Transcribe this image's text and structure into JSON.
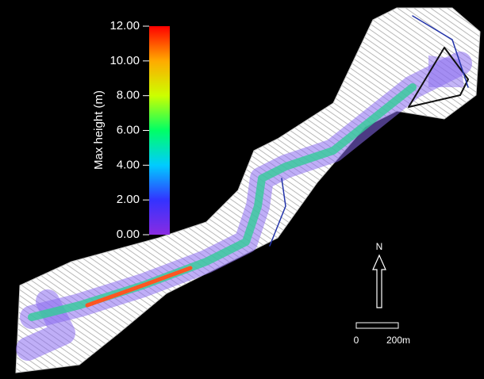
{
  "colorbar": {
    "label": "Max height (m)",
    "range": [
      0,
      12
    ],
    "ticks": [
      {
        "value": 0,
        "label": "0.00"
      },
      {
        "value": 2,
        "label": "2.00"
      },
      {
        "value": 4,
        "label": "4.00"
      },
      {
        "value": 6,
        "label": "6.00"
      },
      {
        "value": 8,
        "label": "8.00"
      },
      {
        "value": 10,
        "label": "10.00"
      },
      {
        "value": 12,
        "label": "12.00"
      }
    ],
    "colors": [
      "#8a2be2",
      "#3333ff",
      "#00ccff",
      "#00ff66",
      "#ccff00",
      "#ffaa00",
      "#ff0000"
    ]
  },
  "compass": {
    "label": "N"
  },
  "scale_bar": {
    "start": "0",
    "end": "200m"
  }
}
